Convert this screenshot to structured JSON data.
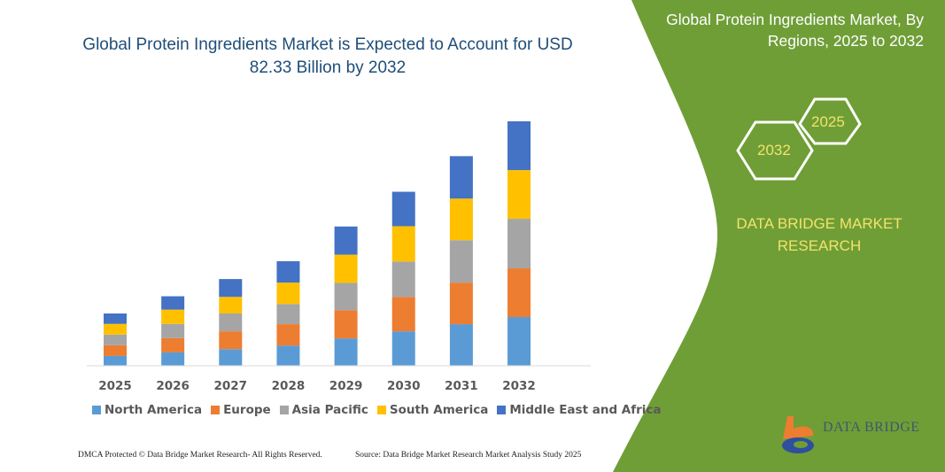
{
  "title": "Global Protein Ingredients Market is Expected to Account for USD 82.33 Billion by 2032",
  "side_panel": {
    "title": "Global Protein Ingredients Market, By Regions, 2025 to 2032",
    "hex_years": [
      "2025",
      "2032"
    ],
    "brand": "DATA BRIDGE MARKET RESEARCH",
    "logo_text": "DATA BRIDGE",
    "color": "#6f9e37"
  },
  "footer": {
    "left": "DMCA Protected © Data Bridge Market Research- All Rights Reserved.",
    "right": "Source: Data Bridge Market Research Market Analysis Study 2025"
  },
  "chart_data": {
    "type": "bar",
    "stacked": true,
    "title": "Global Protein Ingredients Market is Expected to Account for USD 82.33 Billion by 2032",
    "categories": [
      "2025",
      "2026",
      "2027",
      "2028",
      "2029",
      "2030",
      "2031",
      "2032"
    ],
    "series": [
      {
        "name": "North America",
        "color": "#5b9bd5",
        "values": [
          3.3,
          4.5,
          5.6,
          6.8,
          9.2,
          11.6,
          14.0,
          16.4
        ]
      },
      {
        "name": "Europe",
        "color": "#ed7d31",
        "values": [
          3.6,
          4.8,
          6.0,
          7.2,
          9.5,
          11.6,
          14.0,
          16.4
        ]
      },
      {
        "name": "Asia Pacific",
        "color": "#a5a5a5",
        "values": [
          3.6,
          4.8,
          6.0,
          6.8,
          9.2,
          11.9,
          14.3,
          16.7
        ]
      },
      {
        "name": "South America",
        "color": "#ffc000",
        "values": [
          3.6,
          4.8,
          5.6,
          7.2,
          9.5,
          11.9,
          14.0,
          16.4
        ]
      },
      {
        "name": "Middle East and Africa",
        "color": "#4472c4",
        "values": [
          3.5,
          4.5,
          6.0,
          7.2,
          9.5,
          11.6,
          14.3,
          16.43
        ]
      }
    ],
    "ylim": [
      0,
      82.33
    ],
    "grid": false,
    "legend": "bottom"
  }
}
